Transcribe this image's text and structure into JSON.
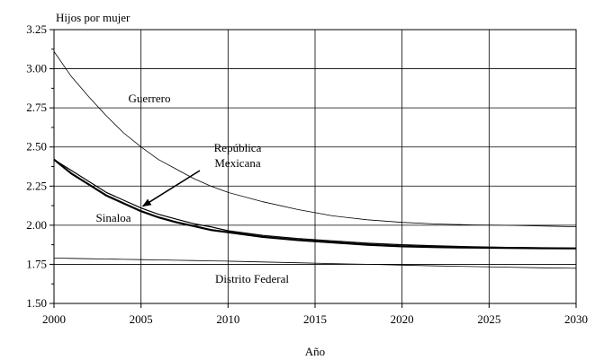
{
  "chart_data": {
    "type": "line",
    "title": "",
    "ylabel": "Hijos por mujer",
    "xlabel": "Año",
    "xlim": [
      2000,
      2030
    ],
    "ylim": [
      1.5,
      3.25
    ],
    "x_ticks": [
      2000,
      2005,
      2010,
      2015,
      2020,
      2025,
      2030
    ],
    "y_ticks": [
      "1.50",
      "1.75",
      "2.00",
      "2.25",
      "2.50",
      "2.75",
      "3.00",
      "3.25"
    ],
    "grid": true,
    "x": [
      2000,
      2001,
      2002,
      2003,
      2004,
      2005,
      2006,
      2007,
      2008,
      2009,
      2010,
      2012,
      2014,
      2016,
      2018,
      2020,
      2022,
      2024,
      2026,
      2028,
      2030
    ],
    "series": [
      {
        "name": "Guerrero",
        "stroke": "#000000",
        "width": 0.8,
        "values": [
          3.11,
          2.95,
          2.82,
          2.7,
          2.59,
          2.5,
          2.42,
          2.36,
          2.3,
          2.25,
          2.21,
          2.15,
          2.1,
          2.06,
          2.035,
          2.018,
          2.008,
          2.002,
          2.0,
          1.995,
          1.99
        ]
      },
      {
        "name": "República Mexicana",
        "stroke": "#000000",
        "width": 1.2,
        "values": [
          2.42,
          2.35,
          2.28,
          2.21,
          2.16,
          2.11,
          2.07,
          2.04,
          2.01,
          1.99,
          1.965,
          1.935,
          1.915,
          1.9,
          1.885,
          1.875,
          1.868,
          1.862,
          1.858,
          1.855,
          1.853
        ]
      },
      {
        "name": "Sinaloa",
        "stroke": "#000000",
        "width": 2.2,
        "values": [
          2.42,
          2.33,
          2.26,
          2.19,
          2.14,
          2.09,
          2.05,
          2.02,
          1.995,
          1.97,
          1.955,
          1.925,
          1.905,
          1.89,
          1.875,
          1.865,
          1.86,
          1.857,
          1.855,
          1.853,
          1.852
        ]
      },
      {
        "name": "Distrito Federal",
        "stroke": "#000000",
        "width": 0.8,
        "values": [
          1.79,
          1.788,
          1.786,
          1.784,
          1.782,
          1.78,
          1.778,
          1.776,
          1.774,
          1.772,
          1.77,
          1.765,
          1.76,
          1.755,
          1.75,
          1.745,
          1.74,
          1.736,
          1.732,
          1.728,
          1.725
        ]
      }
    ],
    "annotations": [
      {
        "name": "Guerrero",
        "lines": [
          "Guerrero"
        ]
      },
      {
        "name": "República Mexicana",
        "lines": [
          "República",
          "Mexicana"
        ],
        "arrow_to": [
          2005,
          2.11
        ]
      },
      {
        "name": "Sinaloa",
        "lines": [
          "Sinaloa"
        ]
      },
      {
        "name": "Distrito Federal",
        "lines": [
          "Distrito Federal"
        ]
      }
    ]
  }
}
